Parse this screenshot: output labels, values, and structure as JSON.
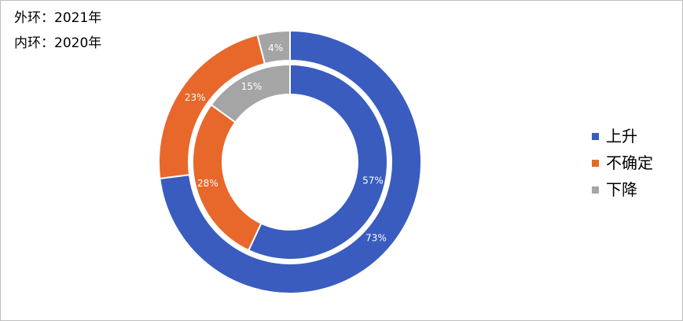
{
  "notes": {
    "outer": "外环：2021年",
    "inner": "内环：2020年"
  },
  "chart_data": {
    "type": "donut",
    "categories": [
      "上升",
      "不确定",
      "下降"
    ],
    "colors": [
      "#3a5cbf",
      "#e8672a",
      "#a5a5a5"
    ],
    "series": [
      {
        "values": [
          73,
          23,
          4
        ],
        "labels": [
          "73%",
          "23%",
          "4%"
        ],
        "ring": "outer",
        "label_color": "#ffffff"
      },
      {
        "values": [
          57,
          28,
          15
        ],
        "labels": [
          "57%",
          "28%",
          "15%"
        ],
        "ring": "inner",
        "label_color": "#ffffff"
      }
    ],
    "outer_label_color_first": "#ffffff",
    "legend": {
      "position": "right"
    }
  }
}
